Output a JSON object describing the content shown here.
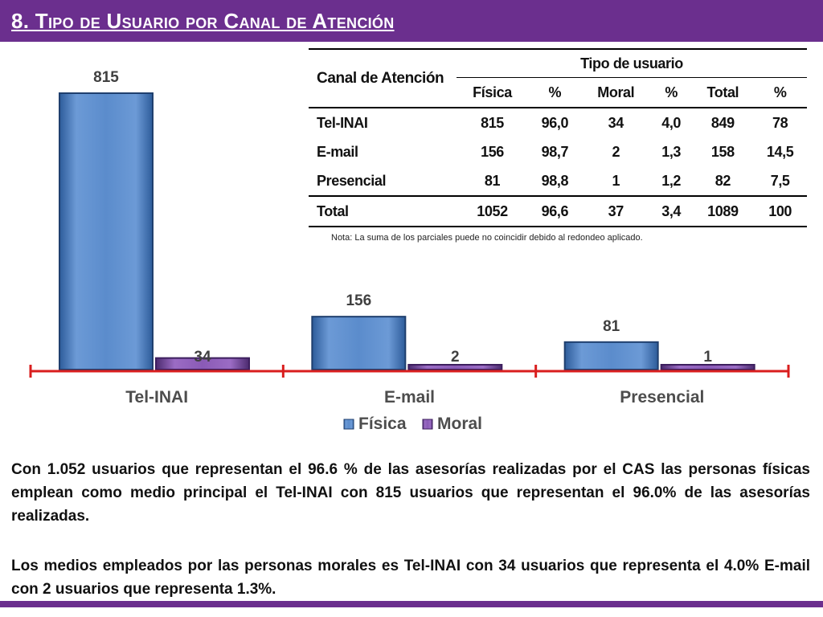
{
  "header": {
    "title": "8. Tipo de Usuario por Canal de Atención"
  },
  "chart_data": {
    "type": "bar",
    "categories": [
      "Tel-INAI",
      "E-mail",
      "Presencial"
    ],
    "series": [
      {
        "name": "Física",
        "values": [
          815,
          156,
          81
        ]
      },
      {
        "name": "Moral",
        "values": [
          34,
          2,
          1
        ]
      }
    ],
    "ylim": [
      0,
      815
    ],
    "legend_position": "bottom",
    "grid": false,
    "colors": {
      "fisica": "#4f81bd",
      "moral": "#7e4fa3",
      "axis": "#d91e1e"
    }
  },
  "table": {
    "canal_header": "Canal de Atención",
    "group_header": "Tipo de usuario",
    "columns": [
      "Física",
      "%",
      "Moral",
      "%",
      "Total",
      "%"
    ],
    "rows": [
      {
        "label": "Tel-INAI",
        "cells": [
          "815",
          "96,0",
          "34",
          "4,0",
          "849",
          "78"
        ]
      },
      {
        "label": "E-mail",
        "cells": [
          "156",
          "98,7",
          "2",
          "1,3",
          "158",
          "14,5"
        ]
      },
      {
        "label": "Presencial",
        "cells": [
          "81",
          "98,8",
          "1",
          "1,2",
          "82",
          "7,5"
        ]
      }
    ],
    "total_row": {
      "label": "Total",
      "cells": [
        "1052",
        "96,6",
        "37",
        "3,4",
        "1089",
        "100"
      ]
    }
  },
  "note": "Nota: La suma de los parciales puede no coincidir debido al redondeo aplicado.",
  "paragraphs": [
    "Con 1.052 usuarios que representan el 96.6 % de las asesorías realizadas por el CAS las personas físicas emplean como medio principal el Tel-INAI con 815 usuarios que representan el 96.0% de las asesorías realizadas.",
    "Los medios empleados por las personas morales es Tel-INAI con 34 usuarios que representa el 4.0%  E-mail con 2 usuarios que representa 1.3%."
  ]
}
